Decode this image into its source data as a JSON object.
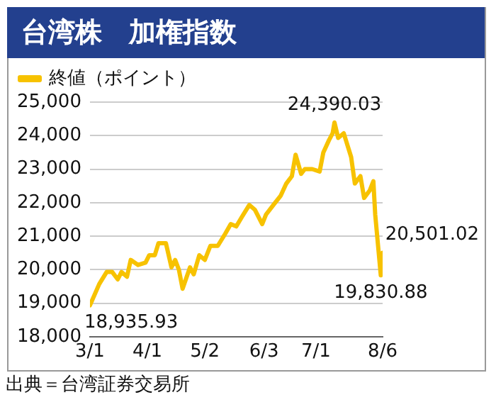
{
  "chart_data": {
    "type": "line",
    "title": "台湾株　加権指数",
    "x": [
      "--03-01",
      "--03-06",
      "--03-10",
      "--03-13",
      "--03-16",
      "--03-18",
      "--03-21",
      "--03-23",
      "--03-27",
      "--03-31",
      "--04-02",
      "--04-05",
      "--04-07",
      "--04-11",
      "--04-14",
      "--04-16",
      "--04-18",
      "--04-20",
      "--04-24",
      "--04-26",
      "--04-29",
      "--05-02",
      "--05-05",
      "--05-09",
      "--05-13",
      "--05-16",
      "--05-19",
      "--05-22",
      "--05-26",
      "--05-29",
      "--06-02",
      "--06-04",
      "--06-08",
      "--06-12",
      "--06-15",
      "--06-18",
      "--06-20",
      "--06-23",
      "--06-25",
      "--06-29",
      "--07-03",
      "--07-05",
      "--07-08",
      "--07-10",
      "--07-11",
      "--07-13",
      "--07-16",
      "--07-20",
      "--07-22",
      "--07-25",
      "--07-27",
      "--07-30",
      "--08-01",
      "--08-02",
      "--08-05",
      "--08-06"
    ],
    "series": [
      {
        "name": "終値（ポイント）",
        "color": "#f7c200",
        "values": [
          18935.93,
          19570,
          19930,
          19930,
          19710,
          19930,
          19790,
          20290,
          20140,
          20210,
          20430,
          20430,
          20790,
          20790,
          20070,
          20290,
          20000,
          19430,
          20070,
          19860,
          20430,
          20290,
          20710,
          20710,
          21070,
          21360,
          21290,
          21570,
          21930,
          21790,
          21360,
          21640,
          21930,
          22210,
          22570,
          22790,
          23430,
          22860,
          23000,
          23000,
          22930,
          23500,
          23860,
          24070,
          24390.03,
          23930,
          24070,
          23360,
          22570,
          22790,
          22140,
          22360,
          22640,
          21640,
          19830.88,
          20501.02
        ]
      }
    ],
    "xlim": [
      "--03-01",
      "--08-06"
    ],
    "xticks": [
      {
        "value": "--03-01",
        "label": "3/1"
      },
      {
        "value": "--04-01",
        "label": "4/1"
      },
      {
        "value": "--05-02",
        "label": "5/2"
      },
      {
        "value": "--06-03",
        "label": "6/3"
      },
      {
        "value": "--07-01",
        "label": "7/1"
      },
      {
        "value": "--08-06",
        "label": "8/6"
      }
    ],
    "ylim": [
      18000,
      25000
    ],
    "yticks": [
      {
        "value": 18000,
        "label": "18,000"
      },
      {
        "value": 19000,
        "label": "19,000"
      },
      {
        "value": 20000,
        "label": "20,000"
      },
      {
        "value": 21000,
        "label": "21,000"
      },
      {
        "value": 22000,
        "label": "22,000"
      },
      {
        "value": 23000,
        "label": "23,000"
      },
      {
        "value": 24000,
        "label": "24,000"
      },
      {
        "value": 25000,
        "label": "25,000"
      }
    ],
    "grid": "y",
    "legend": "top left",
    "marker": "none",
    "line_style": "solid",
    "annotations": [
      {
        "text": "24,390.03",
        "x": "--07-11",
        "y": 24390.03
      },
      {
        "text": "18,935.93",
        "x": "--03-01",
        "y": 18935.93
      },
      {
        "text": "20,501.02",
        "x": "--08-06",
        "y": 20501.02
      },
      {
        "text": "19,830.88",
        "x": "--08-05",
        "y": 19830.88
      },
      "出典＝台湾証券交易所"
    ]
  }
}
